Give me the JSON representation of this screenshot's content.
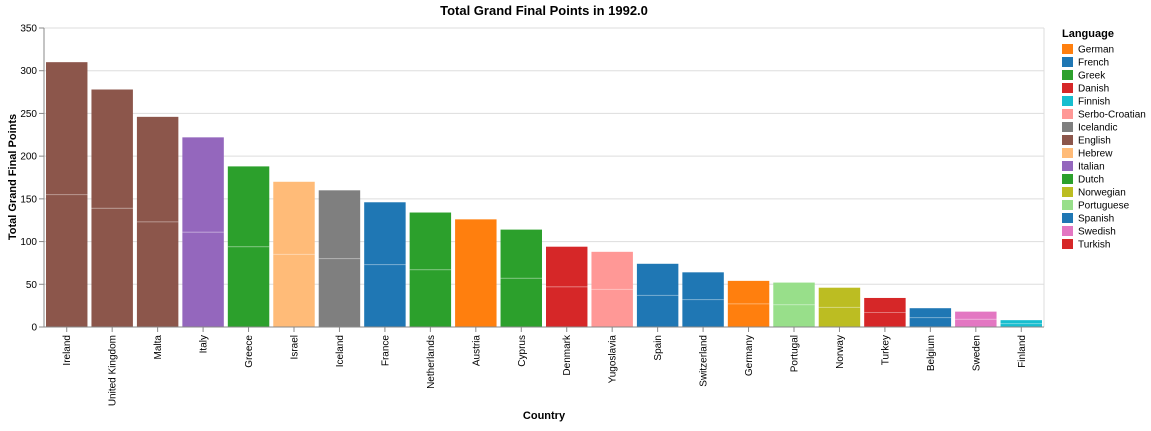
{
  "chart_data": {
    "type": "bar",
    "title": "Total Grand Final Points in 1992.0",
    "xlabel": "Country",
    "ylabel": "Total Grand Final Points",
    "ylim": [
      0,
      350
    ],
    "yticks": [
      0,
      50,
      100,
      150,
      200,
      250,
      300,
      350
    ],
    "grid": true,
    "legend": {
      "title": "Language",
      "position": "right",
      "items": [
        {
          "label": "German",
          "color": "#ff7f0e"
        },
        {
          "label": "French",
          "color": "#1f77b4"
        },
        {
          "label": "Greek",
          "color": "#2ca02c"
        },
        {
          "label": "Danish",
          "color": "#d62728"
        },
        {
          "label": "Finnish",
          "color": "#17becf"
        },
        {
          "label": "Serbo-Croatian",
          "color": "#ff9896"
        },
        {
          "label": "Icelandic",
          "color": "#7f7f7f"
        },
        {
          "label": "English",
          "color": "#8c564b"
        },
        {
          "label": "Hebrew",
          "color": "#ffbb78"
        },
        {
          "label": "Italian",
          "color": "#9467bd"
        },
        {
          "label": "Dutch",
          "color": "#2ca02c"
        },
        {
          "label": "Norwegian",
          "color": "#bcbd22"
        },
        {
          "label": "Portuguese",
          "color": "#98df8a"
        },
        {
          "label": "Spanish",
          "color": "#1f77b4"
        },
        {
          "label": "Swedish",
          "color": "#e377c2"
        },
        {
          "label": "Turkish",
          "color": "#d62728"
        }
      ]
    },
    "bars": [
      {
        "category": "Ireland",
        "value": 310,
        "segments": [
          155,
          155
        ],
        "color": "#8c564b"
      },
      {
        "category": "United Kingdom",
        "value": 278,
        "segments": [
          139,
          139
        ],
        "color": "#8c564b"
      },
      {
        "category": "Malta",
        "value": 246,
        "segments": [
          123,
          123
        ],
        "color": "#8c564b"
      },
      {
        "category": "Italy",
        "value": 222,
        "segments": [
          111,
          111
        ],
        "color": "#9467bd"
      },
      {
        "category": "Greece",
        "value": 188,
        "segments": [
          94,
          94
        ],
        "color": "#2ca02c"
      },
      {
        "category": "Israel",
        "value": 170,
        "segments": [
          85,
          85
        ],
        "color": "#ffbb78"
      },
      {
        "category": "Iceland",
        "value": 160,
        "segments": [
          80,
          80
        ],
        "color": "#7f7f7f"
      },
      {
        "category": "France",
        "value": 146,
        "segments": [
          73,
          73
        ],
        "color": "#1f77b4"
      },
      {
        "category": "Netherlands",
        "value": 134,
        "segments": [
          67,
          67
        ],
        "color": "#2ca02c"
      },
      {
        "category": "Austria",
        "value": 126,
        "segments": [
          126
        ],
        "color": "#ff7f0e"
      },
      {
        "category": "Cyprus",
        "value": 114,
        "segments": [
          57,
          57
        ],
        "color": "#2ca02c"
      },
      {
        "category": "Denmark",
        "value": 94,
        "segments": [
          47,
          47
        ],
        "color": "#d62728"
      },
      {
        "category": "Yugoslavia",
        "value": 88,
        "segments": [
          44,
          44
        ],
        "color": "#ff9896"
      },
      {
        "category": "Spain",
        "value": 74,
        "segments": [
          37,
          37
        ],
        "color": "#1f77b4"
      },
      {
        "category": "Switzerland",
        "value": 64,
        "segments": [
          32,
          32
        ],
        "color": "#1f77b4"
      },
      {
        "category": "Germany",
        "value": 54,
        "segments": [
          27,
          27
        ],
        "color": "#ff7f0e"
      },
      {
        "category": "Portugal",
        "value": 52,
        "segments": [
          26,
          26
        ],
        "color": "#98df8a"
      },
      {
        "category": "Norway",
        "value": 46,
        "segments": [
          23,
          23
        ],
        "color": "#bcbd22"
      },
      {
        "category": "Turkey",
        "value": 34,
        "segments": [
          17,
          17
        ],
        "color": "#d62728"
      },
      {
        "category": "Belgium",
        "value": 22,
        "segments": [
          11,
          11
        ],
        "color": "#1f77b4"
      },
      {
        "category": "Sweden",
        "value": 18,
        "segments": [
          9,
          9
        ],
        "color": "#e377c2"
      },
      {
        "category": "Finland",
        "value": 8,
        "segments": [
          4,
          4
        ],
        "color": "#17becf"
      }
    ]
  }
}
